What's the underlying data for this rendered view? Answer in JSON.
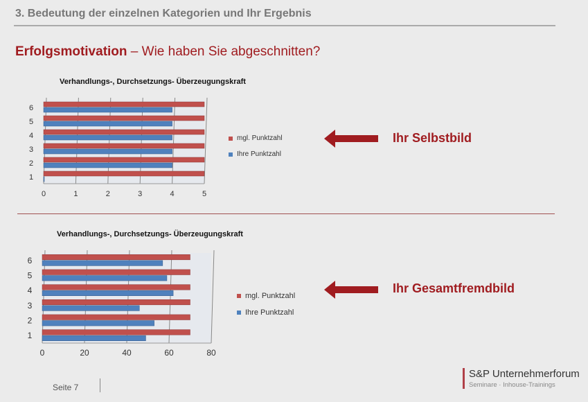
{
  "header": {
    "title": "3. Bedeutung der einzelnen Kategorien und Ihr Ergebnis"
  },
  "slide": {
    "title_bold": "Erfolgsmotivation",
    "title_rest": " – Wie haben Sie abgeschnitten?"
  },
  "colors": {
    "accent": "#a01c20",
    "max_series": "#c0504d",
    "own_series": "#4f81bd"
  },
  "chart_data": [
    {
      "type": "bar",
      "orientation": "horizontal",
      "title": "Verhandlungs-, Durchsetzungs- Überzeugungskraft",
      "categories": [
        "1",
        "2",
        "3",
        "4",
        "5",
        "6"
      ],
      "xlim": [
        0,
        5
      ],
      "xticks": [
        "0",
        "1",
        "2",
        "3",
        "4",
        "5"
      ],
      "legend": "right",
      "series": [
        {
          "name": "mgl. Punktzahl",
          "values": [
            5,
            5,
            5,
            5,
            5,
            5
          ]
        },
        {
          "name": "Ihre Punktzahl",
          "values": [
            0,
            4,
            4,
            4,
            4,
            4
          ]
        }
      ]
    },
    {
      "type": "bar",
      "orientation": "horizontal",
      "title": "Verhandlungs-, Durchsetzungs- Überzeugungskraft",
      "categories": [
        "1",
        "2",
        "3",
        "4",
        "5",
        "6"
      ],
      "xlim": [
        0,
        80
      ],
      "xticks": [
        "0",
        "20",
        "40",
        "60",
        "80"
      ],
      "legend": "right",
      "series": [
        {
          "name": "mgl. Punktzahl",
          "values": [
            70,
            70,
            70,
            70,
            70,
            70
          ]
        },
        {
          "name": "Ihre Punktzahl",
          "values": [
            49,
            53,
            46,
            62,
            59,
            57
          ]
        }
      ]
    }
  ],
  "labels": {
    "self": "Ihr Selbstbild",
    "others": "Ihr Gesamtfremdbild"
  },
  "footer": {
    "page": "Seite 7",
    "logo_name": "S&P Unternehmerforum",
    "logo_sub": "Seminare · Inhouse-Trainings"
  }
}
